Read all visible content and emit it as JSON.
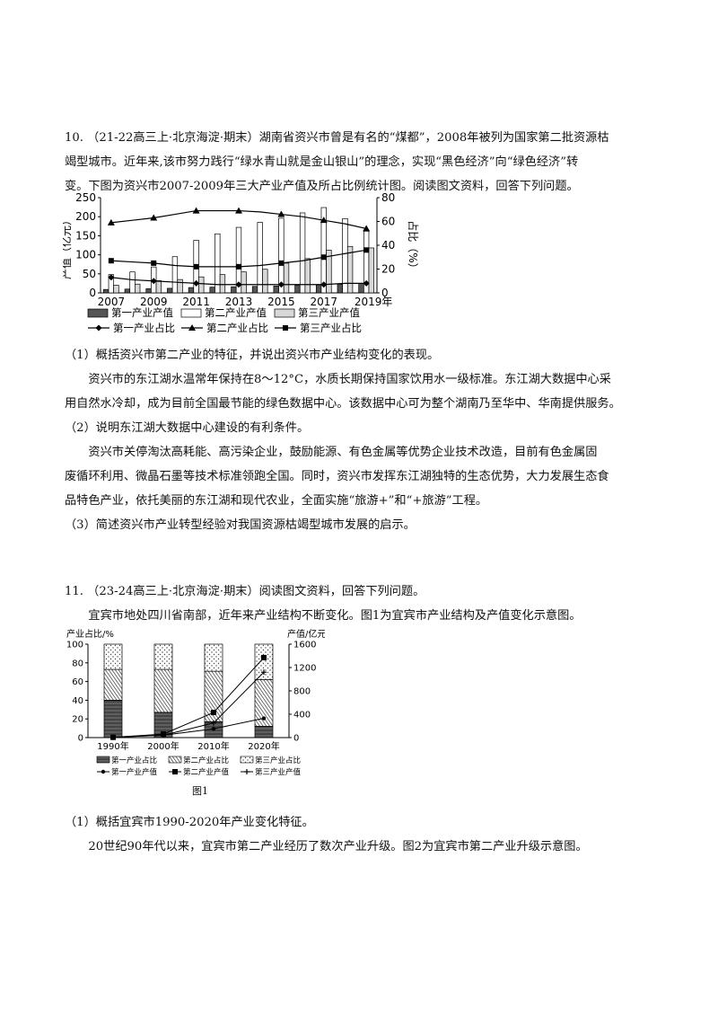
{
  "q10": {
    "line1": "10. （21-22高三上·北京海淀·期末）湖南省资兴市曾是有名的“煤都”，2008年被列为国家第二批资源枯",
    "line2": "竭型城市。近年来,该市努力践行“绿水青山就是金山银山”的理念，实现“黑色经济”向“绿色经济”转",
    "line3": "变。下图为资兴市2007-2009年三大产业产值及所占比例统计图。阅读图文资料，回答下列问题。",
    "sub1": "（1）概括资兴市第二产业的特征，并说出资兴市产业结构变化的表现。",
    "para1a": "资兴市的东江湖水温常年保持在8～12°C，水质长期保持国家饮用水一级标准。东江湖大数据中心采",
    "para1b": "用自然水冷却，成为目前全国最节能的绿色数据中心。该数据中心可为整个湖南乃至华中、华南提供服务。",
    "sub2": "（2）说明东江湖大数据中心建设的有利条件。",
    "para2a": "资兴市关停淘汰高耗能、高污染企业，鼓励能源、有色金属等优势企业技术改造，目前有色金属固",
    "para2b": "废循环利用、微晶石墨等技术标准领跑全国。同时，资兴市发挥东江湖独特的生态优势，大力发展生态食",
    "para2c": "品特色产业，依托美丽的东江湖和现代农业，全面实施“旅游+”和“+旅游”工程。",
    "sub3": "（3）简述资兴市产业转型经验对我国资源枯竭型城市发展的启示。"
  },
  "q11": {
    "line1": "11. （23-24高三上·北京海淀·期末）阅读图文资料，回答下列问题。",
    "line2": "宜宾市地处四川省南部，近年来产业结构不断变化。图1为宜宾市产业结构及产值变化示意图。",
    "fig_caption": "图1",
    "sub1": "（1）概括宜宾市1990-2020年产业变化特征。",
    "para1": "20世纪90年代以来，宜宾市第二产业经历了数次产业升级。图2为宜宾市第二产业升级示意图。"
  },
  "chart_data": [
    {
      "type": "bar",
      "categories": [
        "2007",
        "2008",
        "2009",
        "2010",
        "2011",
        "2012",
        "2013",
        "2014",
        "2015",
        "2016",
        "2017",
        "2018",
        "2019"
      ],
      "x_tick_labels": [
        "2007",
        "2009",
        "2011",
        "2013",
        "2015",
        "2017",
        "2019年"
      ],
      "ylabel": "产值（亿元）",
      "y2label": "占比（%）",
      "ylim": [
        0,
        250
      ],
      "y2lim": [
        0,
        80
      ],
      "yticks": [
        "0",
        "50",
        "100",
        "150",
        "200",
        "250"
      ],
      "y2ticks": [
        "0",
        "20",
        "40",
        "60",
        "80"
      ],
      "series": [
        {
          "name": "第一产业产值",
          "kind": "bar",
          "fill": "#555555",
          "values": [
            9,
            10,
            11,
            12,
            14,
            15,
            16,
            17,
            18,
            20,
            21,
            23,
            25
          ]
        },
        {
          "name": "第二产业产值",
          "kind": "bar",
          "fill": "#ffffff",
          "values": [
            48,
            55,
            68,
            95,
            138,
            155,
            172,
            185,
            196,
            210,
            224,
            195,
            162
          ]
        },
        {
          "name": "第三产业产值",
          "kind": "bar",
          "fill": "#d8d8d8",
          "values": [
            20,
            23,
            32,
            35,
            42,
            48,
            55,
            62,
            78,
            90,
            112,
            122,
            118
          ]
        },
        {
          "name": "第一产业占比",
          "kind": "line",
          "marker": "diamond",
          "axis": "right",
          "values": [
            13,
            11,
            10,
            9,
            8,
            7,
            7,
            7,
            7,
            7,
            7,
            8,
            8
          ]
        },
        {
          "name": "第二产业占比",
          "kind": "line",
          "marker": "triangle",
          "axis": "right",
          "values": [
            59,
            61,
            63,
            66,
            69,
            69,
            69,
            68,
            66,
            64,
            61,
            58,
            54
          ]
        },
        {
          "name": "第三产业占比",
          "kind": "line",
          "marker": "square",
          "axis": "right",
          "values": [
            27,
            26,
            25,
            23,
            22,
            22,
            22,
            23,
            25,
            27,
            30,
            33,
            36
          ]
        }
      ],
      "legend": {
        "row1": [
          "第一产业产值",
          "第二产业产值",
          "第三产业产值"
        ],
        "row2": [
          "第一产业占比",
          "第二产业占比",
          "第三产业占比"
        ]
      }
    },
    {
      "type": "bar",
      "categories": [
        "1990年",
        "2000年",
        "2010年",
        "2020年"
      ],
      "ylabel": "产业占比/%",
      "y2label": "产值/亿元",
      "ylim": [
        0,
        100
      ],
      "y2lim": [
        0,
        1600
      ],
      "yticks": [
        "0",
        "20",
        "40",
        "60",
        "80",
        "100"
      ],
      "y2ticks": [
        "0",
        "400",
        "800",
        "1200",
        "1600"
      ],
      "series": [
        {
          "name": "第一产业占比",
          "kind": "stack",
          "pattern": "dark",
          "values": [
            40,
            27,
            17,
            12
          ]
        },
        {
          "name": "第二产业占比",
          "kind": "stack",
          "pattern": "hatch",
          "values": [
            33,
            46,
            54,
            50
          ]
        },
        {
          "name": "第三产业占比",
          "kind": "stack",
          "pattern": "dots",
          "values": [
            27,
            27,
            29,
            38
          ]
        },
        {
          "name": "第一产业产值",
          "kind": "line",
          "marker": "dot",
          "axis": "right",
          "values": [
            10,
            40,
            150,
            330
          ]
        },
        {
          "name": "第二产业产值",
          "kind": "line",
          "marker": "square",
          "axis": "right",
          "values": [
            5,
            60,
            430,
            1370
          ]
        },
        {
          "name": "第三产业产值",
          "kind": "line",
          "marker": "plus",
          "axis": "right",
          "values": [
            5,
            40,
            250,
            1120
          ]
        }
      ],
      "legend": {
        "row1": [
          "第一产业占比",
          "第二产业占比",
          "第三产业占比"
        ],
        "row2": [
          "第一产业产值",
          "第二产业产值",
          "第三产业产值"
        ]
      }
    }
  ]
}
